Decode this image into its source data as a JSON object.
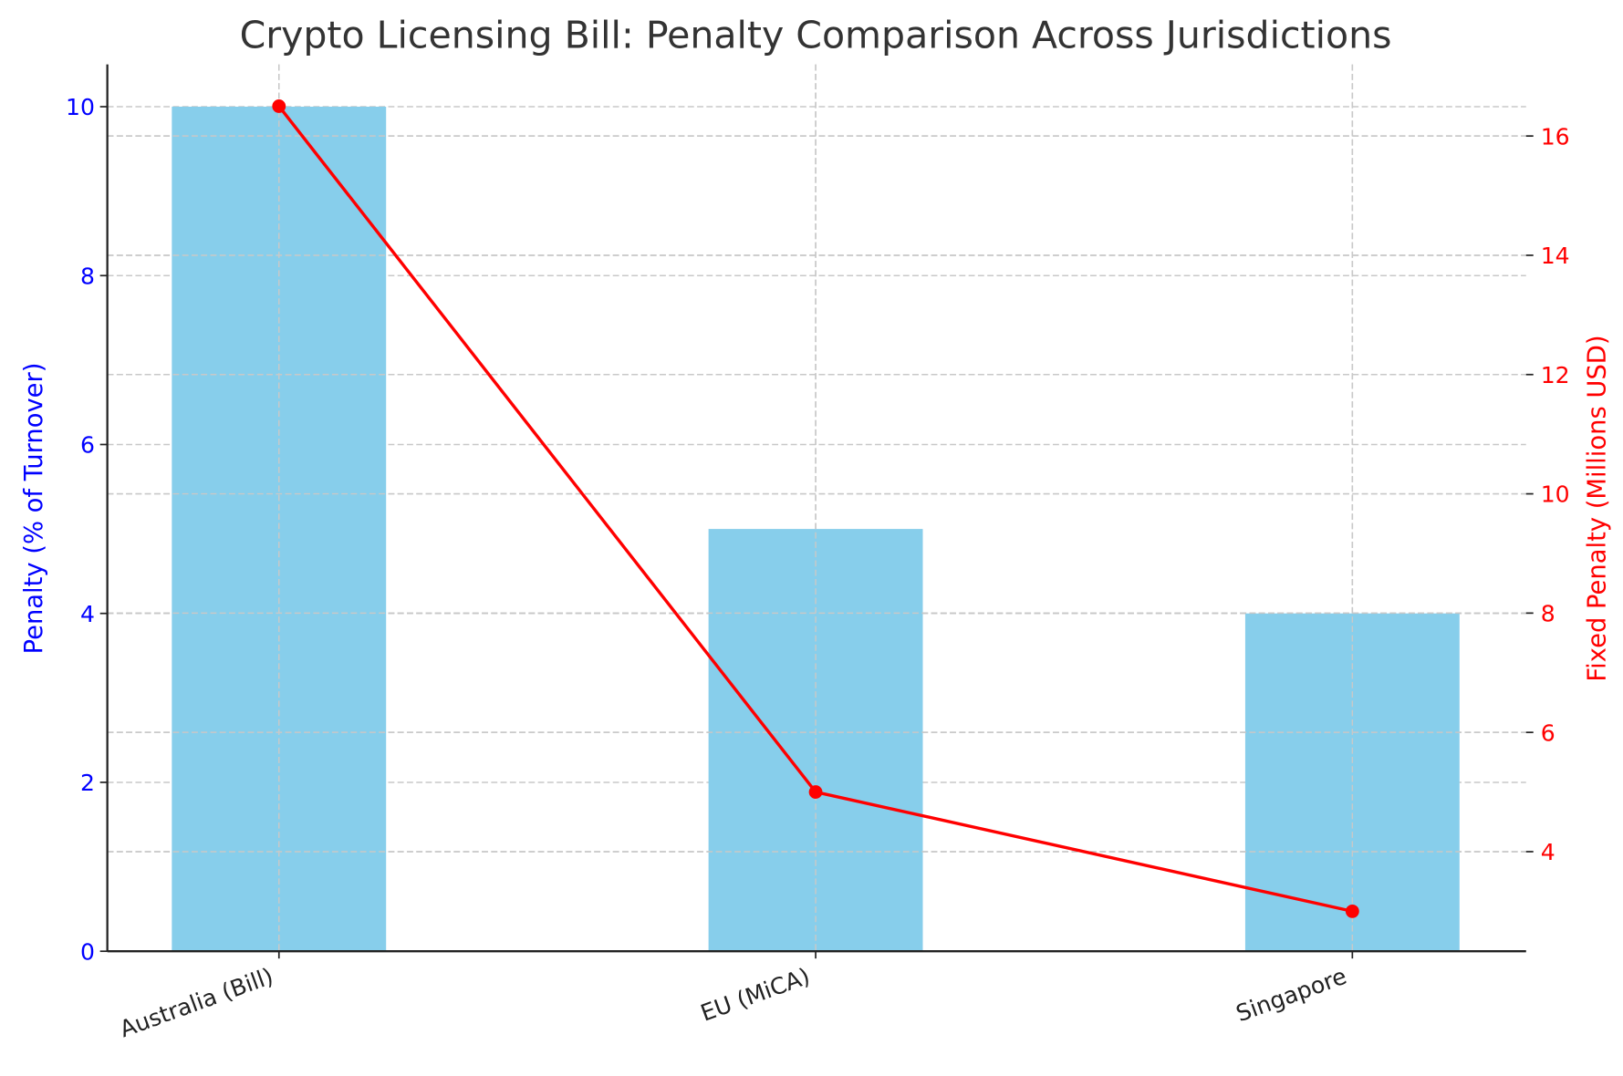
{
  "chart_data": {
    "type": "bar+line",
    "title": "Crypto Licensing Bill: Penalty Comparison Across Jurisdictions",
    "categories": [
      "Australia (Bill)",
      "EU (MiCA)",
      "Singapore"
    ],
    "series": [
      {
        "axis": "left",
        "type": "bar",
        "values": [
          10,
          5,
          4
        ],
        "color": "#87CEEB"
      },
      {
        "axis": "right",
        "type": "line",
        "values": [
          16.5,
          5,
          3
        ],
        "color": "#FF0000",
        "marker": "circle"
      }
    ],
    "ylabel": "Penalty (% of Turnover)",
    "ylabel_color": "#0000FF",
    "y2label": "Fixed Penalty (Millions USD)",
    "y2label_color": "#FF0000",
    "ylim": [
      0,
      10.5
    ],
    "y2lim": [
      2.33,
      17.2
    ],
    "yticks": [
      0,
      2,
      4,
      6,
      8,
      10
    ],
    "y2ticks": [
      4,
      6,
      8,
      10,
      12,
      14,
      16
    ],
    "grid": true,
    "xtick_rotation": 20
  }
}
